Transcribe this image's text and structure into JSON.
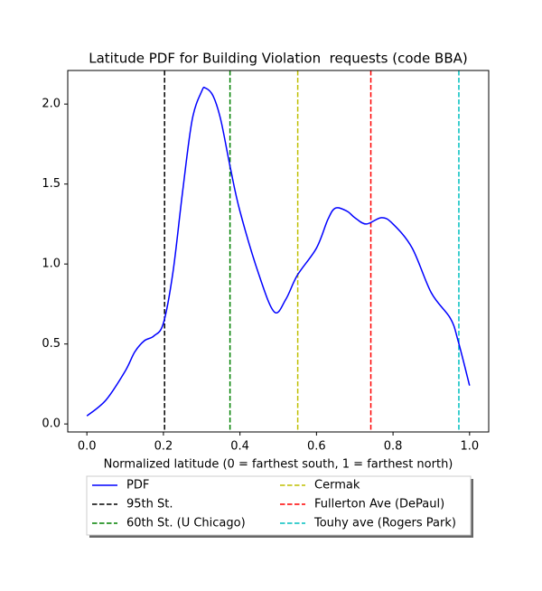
{
  "chart_data": {
    "type": "line",
    "title": "Latitude PDF for Building Violation  requests (code BBA)",
    "xlabel": "Normalized latitude (0 = farthest south, 1 = farthest north)",
    "xlim": [
      -0.05,
      1.05
    ],
    "ylim": [
      -0.05,
      2.21
    ],
    "xticks": [
      {
        "value": 0,
        "label": "0.0"
      },
      0.2,
      0.4,
      0.6,
      0.8,
      {
        "value": 1,
        "label": "1.0"
      }
    ],
    "yticks": [
      {
        "value": 0,
        "label": "0.0"
      },
      0.5,
      {
        "value": 1,
        "label": "1.0"
      },
      1.5,
      {
        "value": 2,
        "label": "2.0"
      }
    ],
    "grid": false,
    "legend": "lower center",
    "series": [
      {
        "name": "PDF",
        "color": "#0000ff",
        "x": [
          0,
          0.05,
          0.1,
          0.125,
          0.15,
          0.175,
          0.2,
          0.225,
          0.25,
          0.275,
          0.3,
          0.31,
          0.33,
          0.35,
          0.375,
          0.4,
          0.45,
          0.49,
          0.52,
          0.55,
          0.6,
          0.63,
          0.65,
          0.68,
          0.7,
          0.73,
          0.77,
          0.8,
          0.85,
          0.9,
          0.95,
          0.97,
          1.0
        ],
        "values": [
          0.05,
          0.15,
          0.33,
          0.45,
          0.52,
          0.55,
          0.63,
          0.95,
          1.45,
          1.9,
          2.08,
          2.1,
          2.05,
          1.9,
          1.6,
          1.33,
          0.93,
          0.7,
          0.78,
          0.93,
          1.1,
          1.28,
          1.35,
          1.33,
          1.29,
          1.25,
          1.29,
          1.25,
          1.1,
          0.82,
          0.66,
          0.52,
          0.24
        ]
      }
    ],
    "vlines": [
      {
        "name": "95th St.",
        "color": "#000000",
        "x": 0.203
      },
      {
        "name": "60th St. (U Chicago)",
        "color": "#008000",
        "x": 0.374
      },
      {
        "name": "Cermak",
        "color": "#bfbf00",
        "x": 0.551
      },
      {
        "name": "Fullerton Ave (DePaul)",
        "color": "#ff0000",
        "x": 0.742
      },
      {
        "name": "Touhy ave (Rogers Park)",
        "color": "#00bfbf",
        "x": 0.972
      }
    ]
  }
}
